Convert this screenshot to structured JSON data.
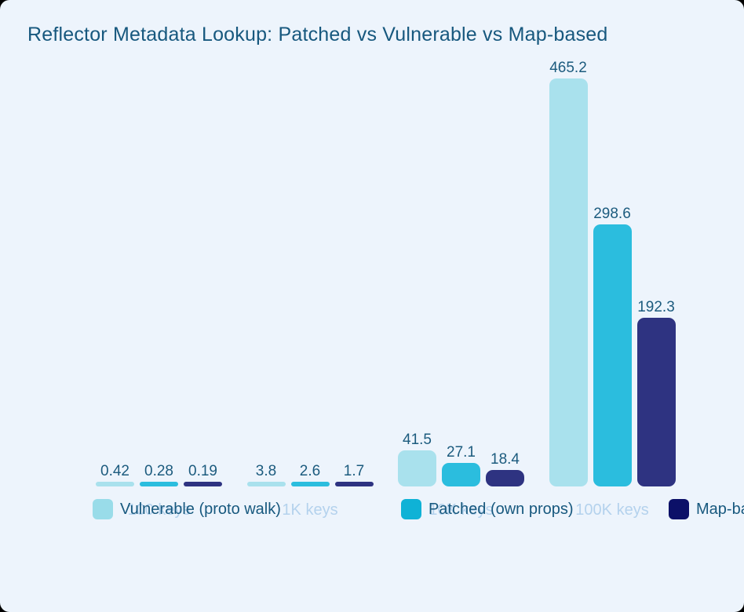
{
  "title": "Reflector Metadata Lookup: Patched vs Vulnerable vs Map-based",
  "colors": {
    "card_background": "#edf4fc",
    "title_text": "#17587e",
    "value_label_text": "#1c5b7e",
    "axis_label_text": "#b4d2ed",
    "legend_text": "#17587e"
  },
  "chart_data": {
    "type": "bar",
    "title": "Reflector Metadata Lookup: Patched vs Vulnerable vs Map-based",
    "categories": [
      "100 keys",
      "1K keys",
      "10K keys",
      "100K keys"
    ],
    "series": [
      {
        "name": "Vulnerable (proto walk)",
        "values": [
          0.42,
          3.8,
          41.5,
          465.2
        ],
        "bar_color": "#a9e1ed",
        "legend_color": "#99dce9"
      },
      {
        "name": "Patched (own props)",
        "values": [
          0.28,
          2.6,
          27.1,
          298.6
        ],
        "bar_color": "#2bbdde",
        "legend_color": "#0fb2d6"
      },
      {
        "name": "Map-based",
        "values": [
          0.19,
          1.7,
          18.4,
          192.3
        ],
        "bar_color": "#2e3381",
        "legend_color": "#0c1068"
      }
    ],
    "ylim": [
      0,
      465.2
    ],
    "grid": false,
    "y_axis_shown": false,
    "x_axis_line_shown": false,
    "value_labels_shown": true,
    "legend_position": "bottom"
  }
}
